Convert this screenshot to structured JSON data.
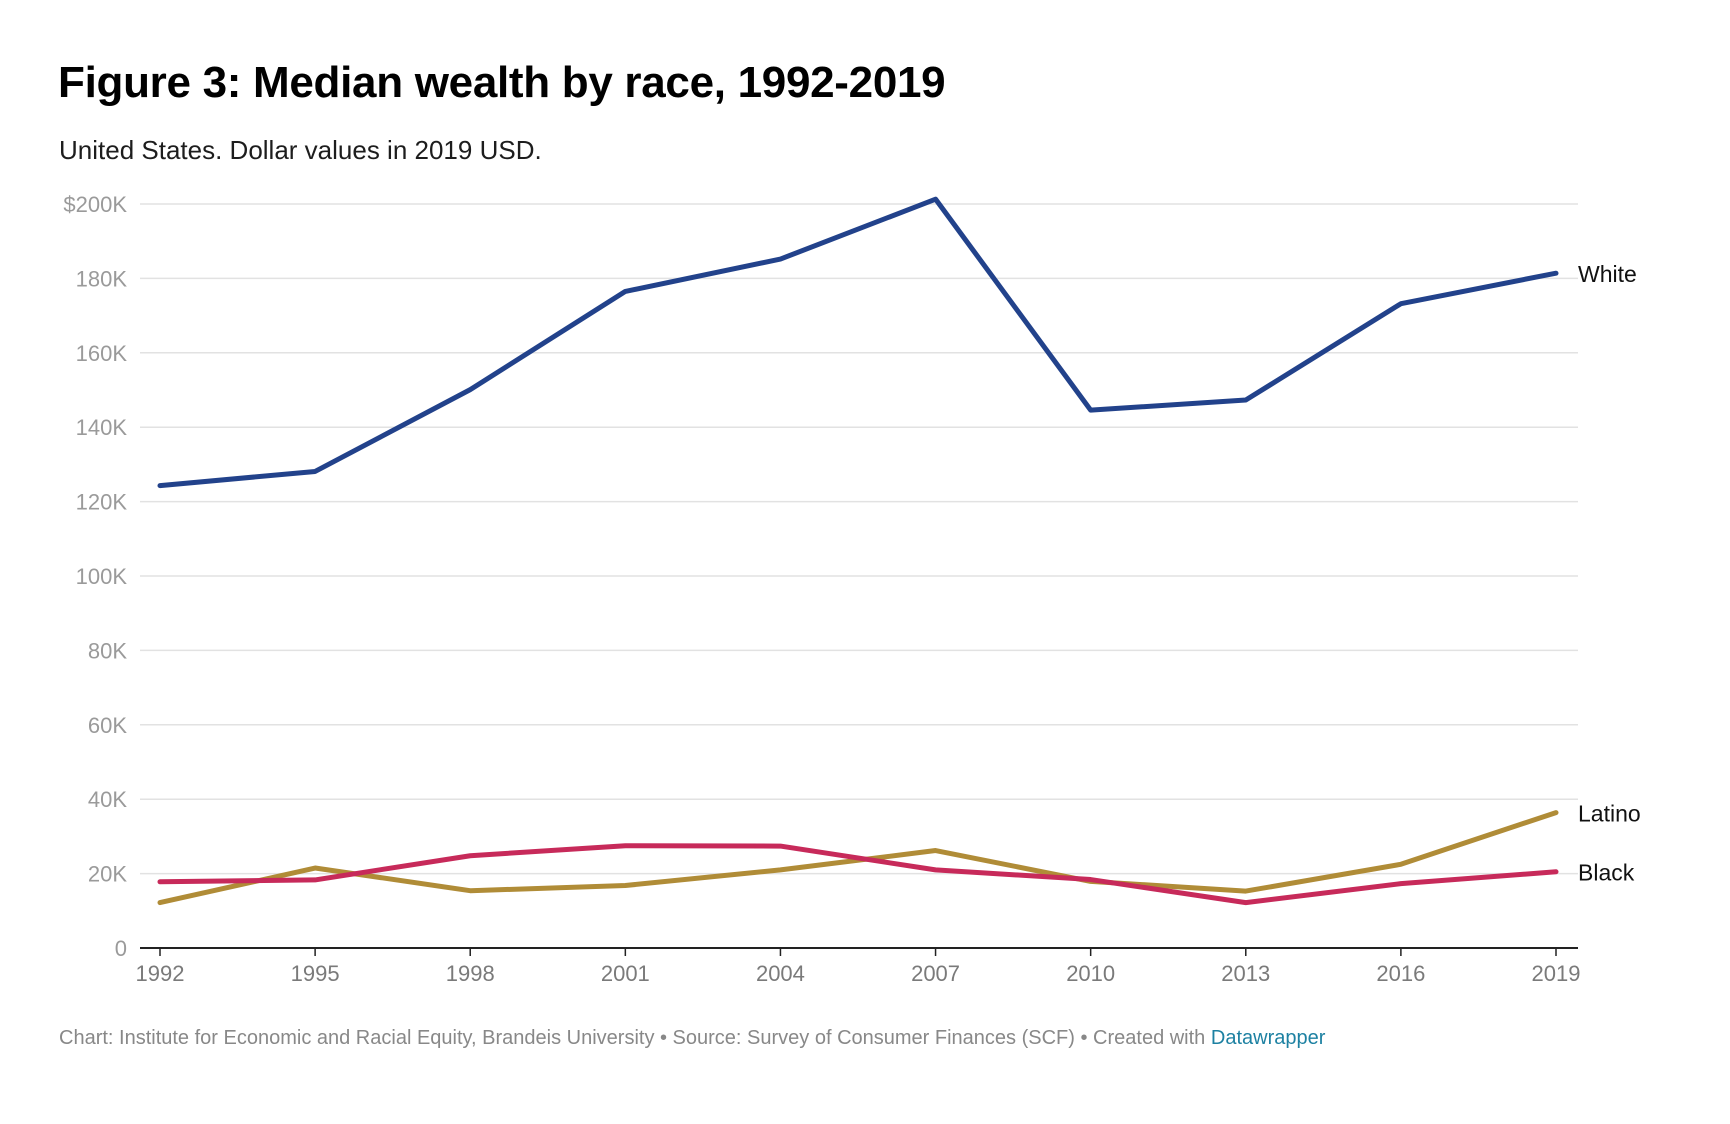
{
  "title": "Figure 3: Median wealth by race, 1992-2019",
  "subtitle": "United States. Dollar values in 2019 USD.",
  "footer": {
    "text": "Chart: Institute for Economic and Racial Equity, Brandeis University • Source: Survey of Consumer Finances (SCF) • Created with ",
    "link": "Datawrapper"
  },
  "chart_data": {
    "type": "line",
    "title": "Figure 3: Median wealth by race, 1992-2019",
    "subtitle": "United States. Dollar values in 2019 USD.",
    "xlabel": "",
    "ylabel": "",
    "x": [
      1992,
      1995,
      1998,
      2001,
      2004,
      2007,
      2010,
      2013,
      2016,
      2019
    ],
    "x_tick_labels": [
      "1992",
      "1995",
      "1998",
      "2001",
      "2004",
      "2007",
      "2010",
      "2013",
      "2016",
      "2019"
    ],
    "ylim": [
      0,
      200000
    ],
    "y_ticks": [
      0,
      20000,
      40000,
      60000,
      80000,
      100000,
      120000,
      140000,
      160000,
      180000,
      200000
    ],
    "y_tick_labels": [
      "0",
      "20K",
      "40K",
      "60K",
      "80K",
      "100K",
      "120K",
      "140K",
      "160K",
      "180K",
      "$200K"
    ],
    "grid": "horizontal",
    "legend": "direct labels at line ends (right)",
    "series": [
      {
        "name": "White",
        "color": "#22428b",
        "values": [
          124300,
          128100,
          150100,
          176500,
          185200,
          201300,
          144600,
          147300,
          173200,
          181400
        ]
      },
      {
        "name": "Latino",
        "color": "#b08c37",
        "values": [
          12200,
          21500,
          15400,
          16800,
          21000,
          26200,
          17900,
          15300,
          22500,
          36400
        ]
      },
      {
        "name": "Black",
        "color": "#c72a5a",
        "values": [
          17800,
          18300,
          24800,
          27500,
          27400,
          21000,
          18400,
          12200,
          17300,
          20500
        ]
      }
    ]
  }
}
